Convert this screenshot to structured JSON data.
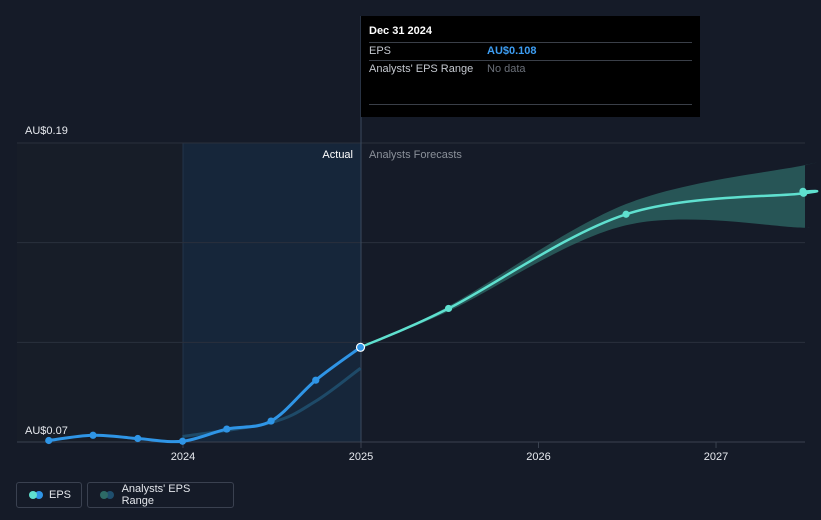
{
  "chart_data": {
    "type": "line",
    "y_axis_labels": [
      "AU$0.19",
      "AU$0.07"
    ],
    "ylim": [
      0.07,
      0.19
    ],
    "x_ticks": [
      "2024",
      "2025",
      "2026",
      "2027"
    ],
    "region_labels": {
      "actual": "Actual",
      "forecast": "Analysts Forecasts"
    },
    "series": [
      {
        "name": "EPS",
        "kind": "actual",
        "color": "#2f95e6",
        "points": [
          {
            "x": "2023-03-31",
            "y": 0.0706
          },
          {
            "x": "2023-06-30",
            "y": 0.0727
          },
          {
            "x": "2023-09-30",
            "y": 0.0714
          },
          {
            "x": "2023-12-31",
            "y": 0.0703
          },
          {
            "x": "2024-03-31",
            "y": 0.0752
          },
          {
            "x": "2024-06-30",
            "y": 0.0784
          },
          {
            "x": "2024-09-30",
            "y": 0.0948
          },
          {
            "x": "2024-12-31",
            "y": 0.108
          }
        ]
      },
      {
        "name": "EPS",
        "kind": "forecast",
        "color": "#5fe0cf",
        "points": [
          {
            "x": "2024-12-31",
            "y": 0.108
          },
          {
            "x": "2025-06-30",
            "y": 0.1236
          },
          {
            "x": "2026-06-30",
            "y": 0.1614
          },
          {
            "x": "2027-06-30",
            "y": 0.1698
          }
        ]
      }
    ],
    "forecast_range": {
      "name": "Analysts' EPS Range",
      "color": "#2d6a66",
      "upper": [
        {
          "x": "2024-12-31",
          "y": 0.108
        },
        {
          "x": "2025-06-30",
          "y": 0.1245
        },
        {
          "x": "2026-06-30",
          "y": 0.1655
        },
        {
          "x": "2027-06-30",
          "y": 0.181
        }
      ],
      "lower": [
        {
          "x": "2024-12-31",
          "y": 0.108
        },
        {
          "x": "2025-06-30",
          "y": 0.1225
        },
        {
          "x": "2026-06-30",
          "y": 0.157
        },
        {
          "x": "2027-06-30",
          "y": 0.156
        }
      ]
    },
    "past_range_line": [
      {
        "x": "2023-12-31",
        "y": 0.0722
      },
      {
        "x": "2024-06-30",
        "y": 0.0778
      },
      {
        "x": "2024-09-30",
        "y": 0.0864
      },
      {
        "x": "2024-12-31",
        "y": 0.0996
      }
    ],
    "grid": true
  },
  "tooltip": {
    "date": "Dec 31 2024",
    "rows": [
      {
        "label": "EPS",
        "value": "AU$0.108"
      },
      {
        "label": "Analysts' EPS Range",
        "value": "No data"
      }
    ]
  },
  "legend": [
    {
      "label": "EPS",
      "colors": [
        "#5fe0cf",
        "#2f95e6"
      ]
    },
    {
      "label": "Analysts' EPS Range",
      "colors": [
        "#2d6a66",
        "#1f4f6e"
      ]
    }
  ]
}
